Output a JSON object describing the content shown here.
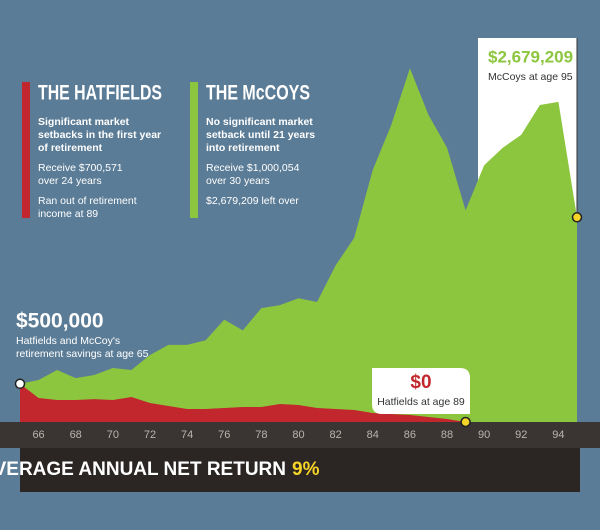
{
  "chart_data": {
    "type": "area",
    "x": [
      65,
      66,
      67,
      68,
      69,
      70,
      71,
      72,
      73,
      74,
      75,
      76,
      77,
      78,
      79,
      80,
      81,
      82,
      83,
      84,
      85,
      86,
      87,
      88,
      89,
      90,
      91,
      92,
      93,
      94,
      95
    ],
    "xlim": [
      65,
      95
    ],
    "xticks": [
      66,
      68,
      70,
      72,
      74,
      76,
      78,
      80,
      82,
      84,
      86,
      88,
      90,
      92,
      94
    ],
    "ylim": [
      0,
      5000000
    ],
    "series": [
      {
        "name": "THE McCOYS",
        "color": "#8cc63f",
        "notes": [
          [
            "No significant market",
            "setback until 21 years",
            "into retirement"
          ],
          [
            "Receive $1,000,054",
            "over 30 years"
          ],
          [
            "$2,679,209 left over"
          ]
        ],
        "values": [
          500000,
          550000,
          680000,
          575000,
          615000,
          707000,
          680000,
          877000,
          1010000,
          1010000,
          1070000,
          1340000,
          1200000,
          1490000,
          1530000,
          1620000,
          1570000,
          2050000,
          2410000,
          3300000,
          3890000,
          4630000,
          4020000,
          3590000,
          2770000,
          3360000,
          3590000,
          3760000,
          4150000,
          4190000,
          2679209
        ]
      },
      {
        "name": "THE HATFIELDS",
        "color": "#c1272d",
        "notes": [
          [
            "Significant market",
            "setbacks in the first year",
            "of retirement"
          ],
          [
            "Receive $700,571",
            "over 24 years"
          ],
          [
            "Ran out of retirement",
            "income at 89"
          ]
        ],
        "values": [
          500000,
          314000,
          288000,
          288000,
          300000,
          288000,
          327000,
          249000,
          209000,
          170000,
          170000,
          183000,
          196000,
          196000,
          235000,
          222000,
          183000,
          170000,
          157000,
          118000,
          105000,
          92000,
          65000,
          39000,
          0,
          null,
          null,
          null,
          null,
          null,
          null
        ]
      }
    ],
    "annotations": [
      {
        "x": 65,
        "value": 500000,
        "label": "$500,000",
        "text": [
          "Hatfields and McCoy's",
          "retirement savings at age 65"
        ]
      },
      {
        "x": 89,
        "value": 0,
        "label": "$0",
        "text": [
          "Hatfields at age 89"
        ]
      },
      {
        "x": 95,
        "value": 2679209,
        "label": "$2,679,209",
        "text": [
          "McCoys at age 95"
        ]
      }
    ],
    "xlabel": "AVERAGE ANNUAL NET RETURN",
    "xlabel_highlight": "9%"
  }
}
